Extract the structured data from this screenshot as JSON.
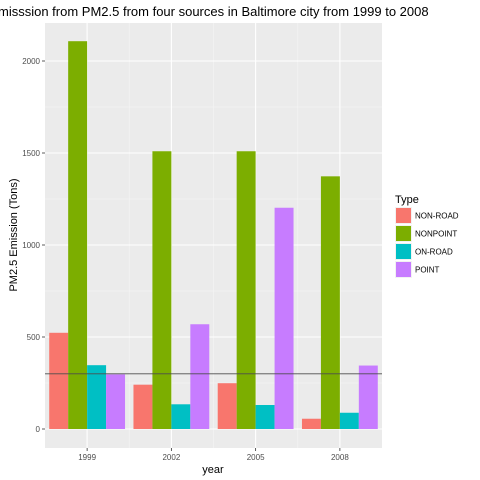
{
  "chart_data": {
    "type": "bar",
    "title": "misssion from PM2.5 from four sources in Baltimore city from 1999 to 2008",
    "xlabel": "year",
    "ylabel": "PM2.5 Emission (Tons)",
    "categories": [
      "1999",
      "2002",
      "2005",
      "2008"
    ],
    "ylim": [
      -120,
      2200
    ],
    "yticks": [
      0,
      500,
      1000,
      1500,
      2000
    ],
    "grid": true,
    "legend": {
      "title": "Type",
      "position": "right"
    },
    "series": [
      {
        "name": "NON-ROAD",
        "color": "#F8766D",
        "values": [
          522.9,
          240.8,
          248.9,
          55.8
        ]
      },
      {
        "name": "NONPOINT",
        "color": "#7CAE00",
        "values": [
          2107.6,
          1509.5,
          1509.5,
          1373.2
        ]
      },
      {
        "name": "ON-ROAD",
        "color": "#00BFC4",
        "values": [
          346.8,
          134.3,
          130.4,
          88.3
        ]
      },
      {
        "name": "POINT",
        "color": "#C77CFF",
        "values": [
          296.8,
          569.3,
          1202.5,
          344.9
        ]
      }
    ],
    "reference_line": {
      "y": 300,
      "color": "#4d4d4d"
    }
  }
}
